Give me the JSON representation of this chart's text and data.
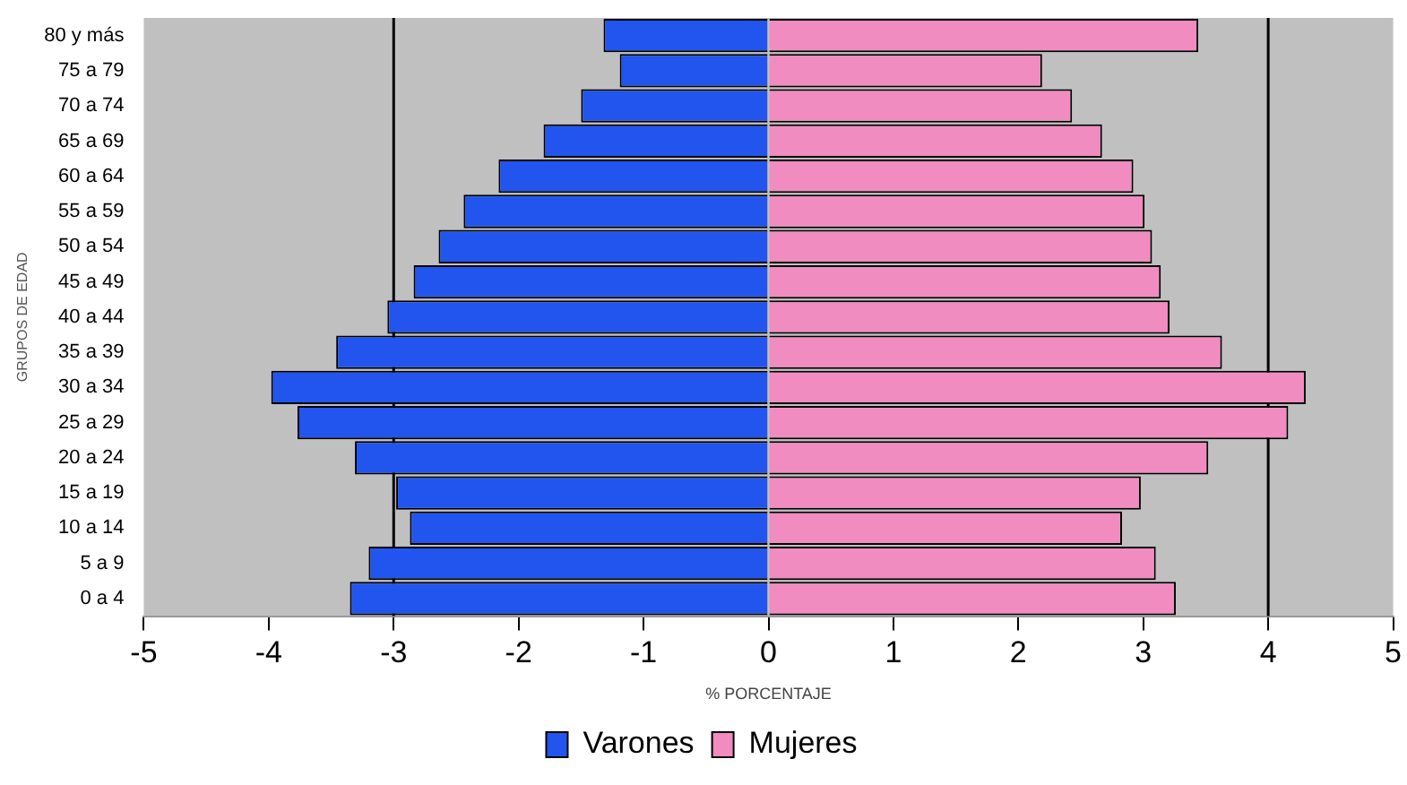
{
  "chart_data": {
    "type": "bar",
    "orientation": "horizontal",
    "stacked": true,
    "xlabel": "% PORCENTAJE",
    "ylabel": "GRUPOS DE EDAD",
    "categories": [
      "80 y más",
      "75 a 79",
      "70 a 74",
      "65 a 69",
      "60 a 64",
      "55 a 59",
      "50 a 54",
      "45 a 49",
      "40 a 44",
      "35 a 39",
      "30 a 34",
      "25 a 29",
      "20 a 24",
      "15 a 19",
      "10 a 14",
      "5 a 9",
      "0 a 4"
    ],
    "series": [
      {
        "name": "Varones",
        "color": "#2255ee",
        "values": [
          -1.32,
          -1.19,
          -1.5,
          -1.8,
          -2.16,
          -2.44,
          -2.64,
          -2.84,
          -3.05,
          -3.46,
          -3.98,
          -3.77,
          -3.31,
          -2.98,
          -2.87,
          -3.2,
          -3.35
        ]
      },
      {
        "name": "Mujeres",
        "color": "#f08cc0",
        "values": [
          3.44,
          2.19,
          2.43,
          2.67,
          2.92,
          3.01,
          3.07,
          3.14,
          3.21,
          3.63,
          4.3,
          4.16,
          3.52,
          2.98,
          2.83,
          3.1,
          3.26
        ]
      }
    ],
    "xlim": [
      -5,
      5
    ],
    "xticks": [
      -5,
      -4,
      -3,
      -2,
      -1,
      0,
      1,
      2,
      3,
      4,
      5
    ],
    "ref_lines": [
      {
        "axis": "x",
        "value": -3,
        "color": "#000000"
      },
      {
        "axis": "x",
        "value": 4,
        "color": "#000000"
      }
    ],
    "grid": false,
    "legend": "bottom"
  }
}
